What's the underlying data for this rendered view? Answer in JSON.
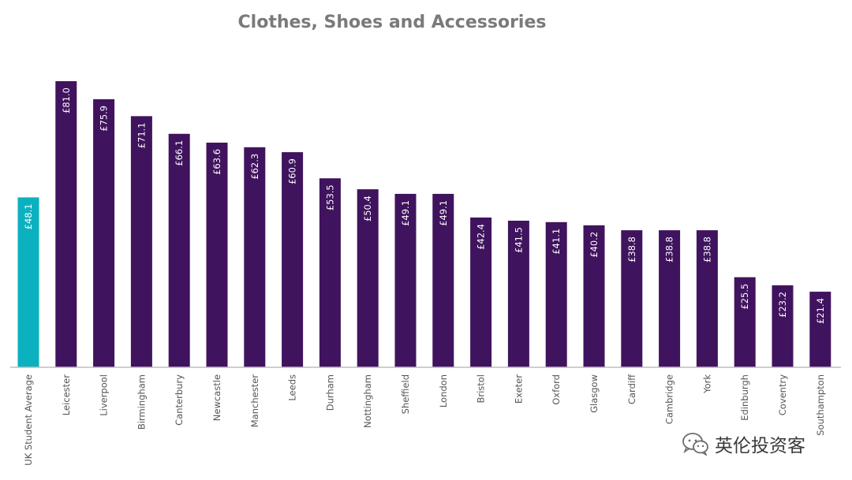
{
  "chart_data": {
    "type": "bar",
    "title": "Clothes, Shoes and Accessories",
    "categories": [
      "UK Student Average",
      "Leicester",
      "Liverpool",
      "Birmingham",
      "Canterbury",
      "Newcastle",
      "Manchester",
      "Leeds",
      "Durham",
      "Nottingham",
      "Sheffield",
      "London",
      "Bristol",
      "Exeter",
      "Oxford",
      "Glasgow",
      "Cardiff",
      "Cambridge",
      "York",
      "Edinburgh",
      "Coventry",
      "Southampton"
    ],
    "values": [
      48.1,
      81.0,
      75.9,
      71.1,
      66.1,
      63.6,
      62.3,
      60.9,
      53.5,
      50.4,
      49.1,
      49.1,
      42.4,
      41.5,
      41.1,
      40.2,
      38.8,
      38.8,
      38.8,
      25.5,
      23.2,
      21.4
    ],
    "data_labels": [
      "£48.1",
      "£81.0",
      "£75.9",
      "£71.1",
      "£66.1",
      "£63.6",
      "£62.3",
      "£60.9",
      "£53.5",
      "£50.4",
      "£49.1",
      "£49.1",
      "£42.4",
      "£41.5",
      "£41.1",
      "£40.2",
      "£38.8",
      "£38.8",
      "£38.8",
      "£25.5",
      "£23.2",
      "£21.4"
    ],
    "ylim": [
      0,
      81.0
    ],
    "grid": false,
    "legend": "none",
    "colors": {
      "highlight": "#0bb1bf",
      "bar": "#40135e",
      "axis": "#bdbdbd",
      "title": "#7a7a7a"
    }
  },
  "watermark": {
    "text": "英伦投资客",
    "icon": "wechat-icon"
  }
}
